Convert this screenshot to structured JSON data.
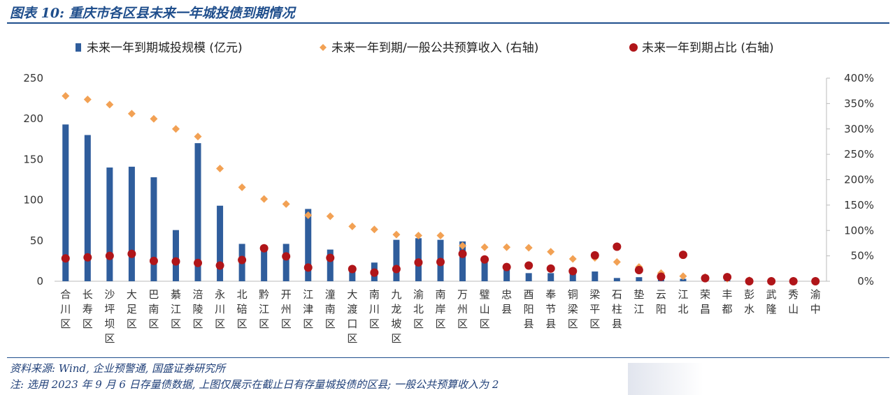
{
  "figure": {
    "title": "图表 10:  重庆市各区县未来一年城投债到期情况",
    "source": "资料来源: Wind, 企业预警通, 国盛证券研究所",
    "note": "注: 选用 2023 年 9 月 6 日存量债数据, 上图仅展示在截止日有存量城投债的区县; 一般公共预算收入为 2"
  },
  "colors": {
    "bar": "#2f5d9c",
    "diamond": "#f2a154",
    "dot": "#b01519",
    "accent": "#1f4e8c"
  },
  "chart_data": {
    "type": "bar",
    "legend_position": "top",
    "y_left": {
      "lim": [
        0,
        250
      ],
      "ticks": [
        "0",
        "50",
        "100",
        "150",
        "200",
        "250"
      ]
    },
    "y_right": {
      "lim": [
        0,
        400
      ],
      "ticks": [
        "0%",
        "50%",
        "100%",
        "150%",
        "200%",
        "250%",
        "300%",
        "350%",
        "400%"
      ]
    },
    "categories": [
      "合川区",
      "长寿区",
      "沙坪坝区",
      "大足区",
      "巴南区",
      "綦江区",
      "涪陵区",
      "永川区",
      "北碚区",
      "黔江区",
      "开州区",
      "江津区",
      "潼南区",
      "大渡口区",
      "南川区",
      "九龙坡区",
      "渝北区",
      "南岸区",
      "万州区",
      "璧山区",
      "忠县",
      "酉阳县",
      "奉节县",
      "铜梁区",
      "梁平区",
      "石柱县",
      "垫江",
      "云阳",
      "江北",
      "荣昌",
      "丰都",
      "彭水",
      "武隆",
      "秀山",
      "渝中"
    ],
    "series": [
      {
        "name": "未来一年到期城投规模 (亿元)",
        "axis": "left",
        "marker": "bar",
        "values": [
          193,
          180,
          140,
          141,
          128,
          63,
          170,
          93,
          46,
          44,
          46,
          89,
          39,
          15,
          23,
          51,
          53,
          51,
          49,
          26,
          16,
          10,
          10,
          9,
          12,
          4,
          5,
          3,
          3,
          2,
          1,
          1,
          1,
          1,
          1
        ]
      },
      {
        "name": "未来一年到期/一般公共预算收入 (右轴)",
        "axis": "right",
        "marker": "diamond",
        "values": [
          365,
          358,
          348,
          330,
          320,
          300,
          285,
          222,
          185,
          162,
          152,
          130,
          128,
          108,
          102,
          92,
          90,
          90,
          70,
          67,
          67,
          66,
          58,
          44,
          46,
          38,
          28,
          16,
          10,
          8,
          5,
          2,
          1,
          1,
          1
        ]
      },
      {
        "name": "未来一年到期占比 (右轴)",
        "axis": "right",
        "marker": "dot",
        "values": [
          45,
          47,
          50,
          54,
          40,
          39,
          36,
          31,
          42,
          65,
          49,
          27,
          46,
          24,
          17,
          24,
          37,
          38,
          54,
          43,
          28,
          31,
          25,
          20,
          51,
          68,
          22,
          9,
          52,
          6,
          8,
          0,
          0,
          0,
          0
        ]
      }
    ]
  }
}
